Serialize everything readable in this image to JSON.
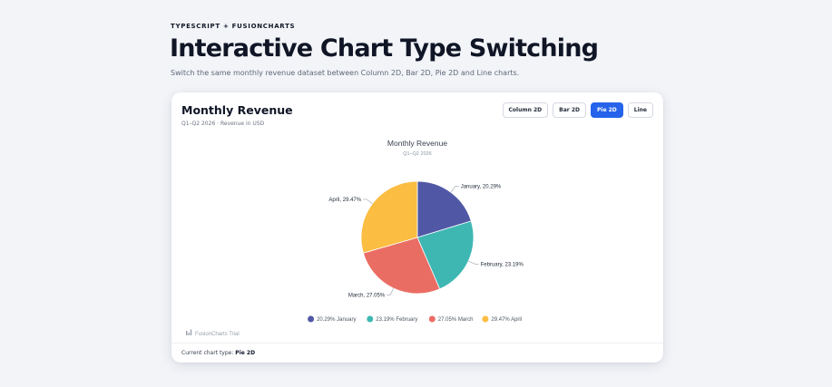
{
  "header": {
    "eyebrow": "TYPESCRIPT + FUSIONCHARTS",
    "title": "Interactive Chart Type Switching",
    "subtitle": "Switch the same monthly revenue dataset between Column 2D, Bar 2D, Pie 2D and Line charts."
  },
  "card": {
    "title": "Monthly Revenue",
    "subtitle": "Q1–Q2 2026 · Revenue in USD",
    "buttons": [
      {
        "label": "Column 2D",
        "active": false
      },
      {
        "label": "Bar 2D",
        "active": false
      },
      {
        "label": "Pie 2D",
        "active": true
      },
      {
        "label": "Line",
        "active": false
      }
    ],
    "footer_label": "Current chart type:",
    "footer_value": "Pie 2D",
    "watermark": "FusionCharts Trial"
  },
  "chart_data": {
    "type": "pie",
    "title": "Monthly Revenue",
    "subtitle": "Q1–Q2 2026",
    "categories": [
      "January",
      "February",
      "March",
      "April"
    ],
    "values": [
      20.29,
      23.19,
      27.05,
      29.47
    ],
    "data_labels": [
      "January, 20.29%",
      "February, 23.19%",
      "March, 27.05%",
      "April, 29.47%"
    ],
    "legend": [
      "20.29% January",
      "23.19% February",
      "27.05% March",
      "29.47% April"
    ],
    "colors": [
      "#5058a6",
      "#3eb7b3",
      "#ea6d64",
      "#fbbd42"
    ],
    "legend_position": "bottom"
  }
}
